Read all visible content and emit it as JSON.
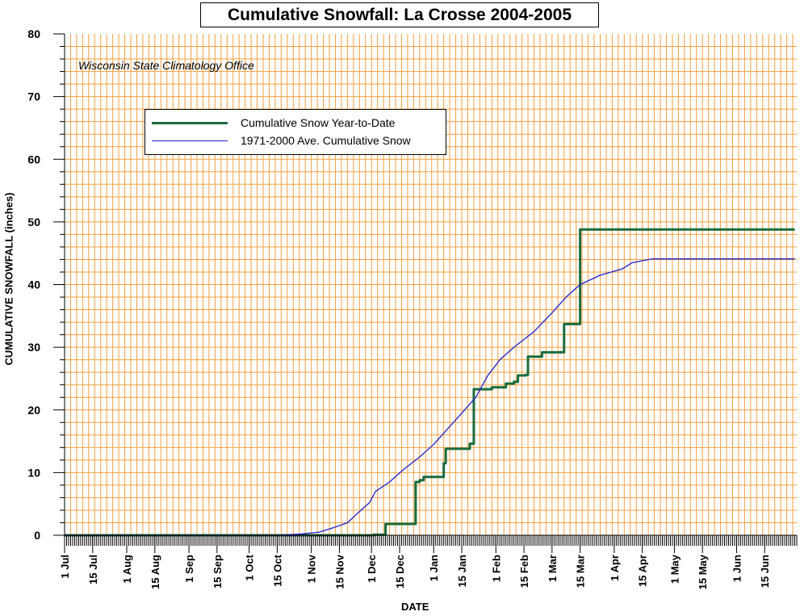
{
  "chart_data": {
    "type": "line",
    "title": "Cumulative Snowfall: La Crosse 2004-2005",
    "annotation": "Wisconsin State Climatology Office",
    "xlabel": "DATE",
    "ylabel": "CUMULATIVE SNOWFALL (inches)",
    "xlim": [
      "2004-07-01",
      "2005-06-30"
    ],
    "ylim": [
      0,
      80
    ],
    "y_ticks": [
      0,
      10,
      20,
      30,
      40,
      50,
      60,
      70,
      80
    ],
    "x_ticks": [
      {
        "date": "2004-07-01",
        "label": "1 Jul"
      },
      {
        "date": "2004-07-15",
        "label": "15 Jul"
      },
      {
        "date": "2004-08-01",
        "label": "1 Aug"
      },
      {
        "date": "2004-08-15",
        "label": "15 Aug"
      },
      {
        "date": "2004-09-01",
        "label": "1 Sep"
      },
      {
        "date": "2004-09-15",
        "label": "15 Sep"
      },
      {
        "date": "2004-10-01",
        "label": "1 Oct"
      },
      {
        "date": "2004-10-15",
        "label": "15 Oct"
      },
      {
        "date": "2004-11-01",
        "label": "1 Nov"
      },
      {
        "date": "2004-11-15",
        "label": "15 Nov"
      },
      {
        "date": "2004-12-01",
        "label": "1 Dec"
      },
      {
        "date": "2004-12-15",
        "label": "15 Dec"
      },
      {
        "date": "2005-01-01",
        "label": "1 Jan"
      },
      {
        "date": "2005-01-15",
        "label": "15 Jan"
      },
      {
        "date": "2005-02-01",
        "label": "1 Feb"
      },
      {
        "date": "2005-02-15",
        "label": "15 Feb"
      },
      {
        "date": "2005-03-01",
        "label": "1 Mar"
      },
      {
        "date": "2005-03-15",
        "label": "15 Mar"
      },
      {
        "date": "2005-04-01",
        "label": "1 Apr"
      },
      {
        "date": "2005-04-15",
        "label": "15 Apr"
      },
      {
        "date": "2005-05-01",
        "label": "1 May"
      },
      {
        "date": "2005-05-15",
        "label": "15 May"
      },
      {
        "date": "2005-06-01",
        "label": "1 Jun"
      },
      {
        "date": "2005-06-15",
        "label": "15 Jun"
      }
    ],
    "grid": true,
    "legend_position": "upper-left",
    "series": [
      {
        "name": "Cumulative Snow Year-to-Date",
        "color": "#1a6b3c",
        "step": true,
        "points": [
          [
            "2004-07-01",
            0.0
          ],
          [
            "2004-12-01",
            0.0
          ],
          [
            "2004-12-02",
            0.1
          ],
          [
            "2004-12-07",
            0.1
          ],
          [
            "2004-12-08",
            1.8
          ],
          [
            "2004-12-22",
            1.8
          ],
          [
            "2004-12-23",
            8.5
          ],
          [
            "2004-12-25",
            8.8
          ],
          [
            "2004-12-27",
            9.3
          ],
          [
            "2005-01-05",
            9.3
          ],
          [
            "2005-01-06",
            11.5
          ],
          [
            "2005-01-07",
            13.8
          ],
          [
            "2005-01-17",
            13.8
          ],
          [
            "2005-01-19",
            14.6
          ],
          [
            "2005-01-21",
            23.3
          ],
          [
            "2005-01-29",
            23.3
          ],
          [
            "2005-01-30",
            23.6
          ],
          [
            "2005-02-05",
            23.6
          ],
          [
            "2005-02-06",
            24.2
          ],
          [
            "2005-02-10",
            24.5
          ],
          [
            "2005-02-12",
            25.5
          ],
          [
            "2005-02-16",
            25.6
          ],
          [
            "2005-02-17",
            28.5
          ],
          [
            "2005-02-23",
            28.5
          ],
          [
            "2005-02-24",
            29.2
          ],
          [
            "2005-03-05",
            29.2
          ],
          [
            "2005-03-07",
            33.7
          ],
          [
            "2005-03-13",
            33.7
          ],
          [
            "2005-03-15",
            48.8
          ],
          [
            "2005-06-30",
            48.8
          ]
        ]
      },
      {
        "name": "1971-2000 Ave. Cumulative Snow",
        "color": "#1f1fd0",
        "step": false,
        "points": [
          [
            "2004-07-01",
            0.0
          ],
          [
            "2004-10-15",
            0.0
          ],
          [
            "2004-10-27",
            0.2
          ],
          [
            "2004-11-05",
            0.5
          ],
          [
            "2004-11-12",
            1.2
          ],
          [
            "2004-11-19",
            2.0
          ],
          [
            "2004-11-24",
            3.5
          ],
          [
            "2004-11-30",
            5.2
          ],
          [
            "2004-12-03",
            7.0
          ],
          [
            "2004-12-10",
            8.5
          ],
          [
            "2004-12-17",
            10.5
          ],
          [
            "2004-12-25",
            12.5
          ],
          [
            "2005-01-01",
            14.5
          ],
          [
            "2005-01-08",
            17.0
          ],
          [
            "2005-01-15",
            19.5
          ],
          [
            "2005-01-22",
            22.0
          ],
          [
            "2005-01-28",
            25.5
          ],
          [
            "2005-02-03",
            28.0
          ],
          [
            "2005-02-10",
            30.0
          ],
          [
            "2005-02-20",
            32.5
          ],
          [
            "2005-03-01",
            35.5
          ],
          [
            "2005-03-08",
            38.0
          ],
          [
            "2005-03-15",
            40.0
          ],
          [
            "2005-03-25",
            41.5
          ],
          [
            "2005-04-05",
            42.5
          ],
          [
            "2005-04-10",
            43.5
          ],
          [
            "2005-04-20",
            44.1
          ],
          [
            "2005-06-30",
            44.1
          ]
        ]
      }
    ]
  }
}
